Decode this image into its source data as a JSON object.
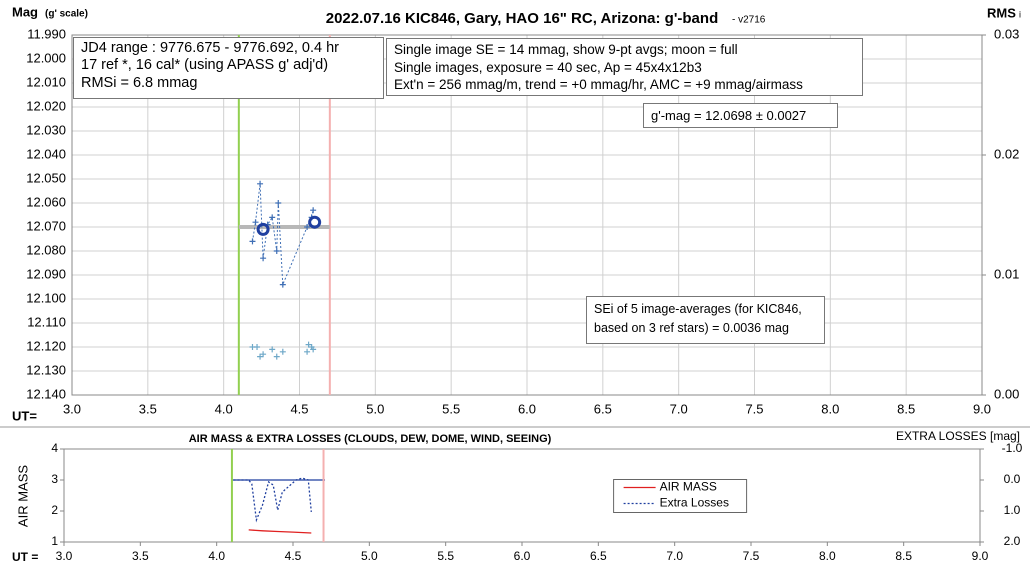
{
  "chart_data": [
    {
      "type": "scatter",
      "title": "2022.07.16 KIC846, Gary, HAO 16\" RC, Arizona: g'-band",
      "title_note": "- v2716",
      "ylabel": "Mag",
      "ylabel_note": "(g' scale)",
      "y2label": "RMS",
      "y2label_sub": "i",
      "xlabel": "UT=",
      "xlim": [
        3,
        9
      ],
      "xticks": [
        {
          "value": 3,
          "label": "3.0"
        },
        {
          "value": 3.5,
          "label": "3.5"
        },
        {
          "value": 4,
          "label": "4.0"
        },
        {
          "value": 4.5,
          "label": "4.5"
        },
        {
          "value": 5,
          "label": "5.0"
        },
        {
          "value": 5.5,
          "label": "5.5"
        },
        {
          "value": 6,
          "label": "6.0"
        },
        {
          "value": 6.5,
          "label": "6.5"
        },
        {
          "value": 7,
          "label": "7.0"
        },
        {
          "value": 7.5,
          "label": "7.5"
        },
        {
          "value": 8,
          "label": "8.0"
        },
        {
          "value": 8.5,
          "label": "8.5"
        },
        {
          "value": 9,
          "label": "9.0"
        }
      ],
      "ylim": [
        12.14,
        11.99
      ],
      "yticks": [
        {
          "value": 11.99,
          "label": "11.990"
        },
        {
          "value": 12.0,
          "label": "12.000"
        },
        {
          "value": 12.01,
          "label": "12.010"
        },
        {
          "value": 12.02,
          "label": "12.020"
        },
        {
          "value": 12.03,
          "label": "12.030"
        },
        {
          "value": 12.04,
          "label": "12.040"
        },
        {
          "value": 12.05,
          "label": "12.050"
        },
        {
          "value": 12.06,
          "label": "12.060"
        },
        {
          "value": 12.07,
          "label": "12.070"
        },
        {
          "value": 12.08,
          "label": "12.080"
        },
        {
          "value": 12.09,
          "label": "12.090"
        },
        {
          "value": 12.1,
          "label": "12.100"
        },
        {
          "value": 12.11,
          "label": "12.110"
        },
        {
          "value": 12.12,
          "label": "12.120"
        },
        {
          "value": 12.13,
          "label": "12.130"
        },
        {
          "value": 12.14,
          "label": "12.140"
        }
      ],
      "y2lim": [
        0,
        0.03
      ],
      "y2ticks": [
        {
          "value": 0,
          "label": "0.00"
        },
        0.01,
        0.02,
        0.03
      ],
      "grid": true,
      "series": [
        {
          "color": "#3f6fb5",
          "line": true,
          "marker": "plus",
          "x": [
            4.19,
            4.21,
            4.24,
            4.26,
            4.29,
            4.32,
            4.35,
            4.36,
            4.39,
            4.55,
            4.58,
            4.59
          ],
          "values": [
            12.076,
            12.068,
            12.052,
            12.083,
            12.069,
            12.066,
            12.08,
            12.06,
            12.094,
            12.07,
            12.066,
            12.063
          ]
        },
        {
          "color": "#6fa8c8",
          "line": false,
          "marker": "plus",
          "x": [
            4.19,
            4.22,
            4.24,
            4.26,
            4.32,
            4.35,
            4.39,
            4.55,
            4.56,
            4.58,
            4.59
          ],
          "values": [
            12.12,
            12.12,
            12.124,
            12.123,
            12.121,
            12.124,
            12.122,
            12.122,
            12.119,
            12.12,
            12.121
          ]
        },
        {
          "color": "#1f3fa0",
          "line": false,
          "marker": "circle",
          "x": [
            4.26,
            4.6
          ],
          "values": [
            12.071,
            12.068
          ]
        }
      ],
      "vlines": [
        {
          "x": 4.1,
          "color": "#92d050"
        },
        {
          "x": 4.7,
          "color": "#f4b0b0"
        }
      ],
      "hline": {
        "y": 12.07,
        "x": [
          4.1,
          4.7
        ],
        "color": "#b8b8b8"
      },
      "annotations": [
        {
          "lines": [
            "JD4 range : 9776.675 - 9776.692,  0.4 hr",
            "17 ref *, 16 cal* (using APASS g' adj'd)",
            "RMSi = 6.8 mmag"
          ]
        },
        {
          "lines": [
            "Single image SE = 14 mmag, show  9-pt avgs; moon = full",
            "Single images, exposure = 40 sec, Ap = 45x4x12b3",
            "Ext'n = 256 mmag/m, trend = +0 mmag/hr, AMC = +9 mmag/airmass"
          ]
        },
        {
          "lines": [
            "g'-mag = 12.0698 ± 0.0027"
          ]
        },
        {
          "lines": [
            "SEi of 5 image-averages (for KIC846,",
            "based on 3 ref stars) = 0.0036 mag"
          ]
        }
      ]
    },
    {
      "type": "line",
      "title": "AIR MASS & EXTRA LOSSES (CLOUDS, DEW, DOME, WIND, SEEING)",
      "ylabel": "AIR MASS",
      "y2label": "EXTRA LOSSES [mag]",
      "xlabel": "UT =",
      "xlim": [
        3,
        9
      ],
      "xticks": [
        {
          "value": 3,
          "label": "3.0"
        },
        {
          "value": 3.5,
          "label": "3.5"
        },
        {
          "value": 4,
          "label": "4.0"
        },
        {
          "value": 4.5,
          "label": "4.5"
        },
        {
          "value": 5,
          "label": "5.0"
        },
        {
          "value": 5.5,
          "label": "5.5"
        },
        {
          "value": 6,
          "label": "6.0"
        },
        {
          "value": 6.5,
          "label": "6.5"
        },
        {
          "value": 7,
          "label": "7.0"
        },
        {
          "value": 7.5,
          "label": "7.5"
        },
        {
          "value": 8,
          "label": "8.0"
        },
        {
          "value": 8.5,
          "label": "8.5"
        },
        {
          "value": 9,
          "label": "9.0"
        }
      ],
      "ylim": [
        1,
        4
      ],
      "yticks": [
        1,
        2,
        3,
        4
      ],
      "y2lim": [
        2,
        -1
      ],
      "y2ticks": [
        {
          "value": -1,
          "label": "-1.0"
        },
        {
          "value": 0,
          "label": "0.0"
        },
        {
          "value": 1,
          "label": "1.0"
        },
        {
          "value": 2,
          "label": "2.0"
        }
      ],
      "grid": false,
      "legend": "center-right",
      "series": [
        {
          "name": "AIR MASS",
          "color": "#e02020",
          "dashed": false,
          "x": [
            4.21,
            4.3,
            4.4,
            4.5,
            4.62
          ],
          "values": [
            1.39,
            1.36,
            1.34,
            1.32,
            1.29
          ]
        },
        {
          "name": "Extra Losses",
          "color": "#1f3f9f",
          "dashed": true,
          "axis": "y2",
          "x": [
            4.11,
            4.21,
            4.23,
            4.26,
            4.3,
            4.34,
            4.37,
            4.4,
            4.43,
            4.52,
            4.56,
            4.6,
            4.62
          ],
          "values": [
            0.0,
            0.0,
            0.13,
            1.29,
            0.81,
            0.06,
            0.16,
            0.97,
            0.39,
            0.0,
            -0.06,
            0.0,
            1.03
          ]
        }
      ],
      "vlines": [
        {
          "x": 4.1,
          "color": "#92d050"
        },
        {
          "x": 4.7,
          "color": "#f4b0b0"
        }
      ]
    }
  ]
}
